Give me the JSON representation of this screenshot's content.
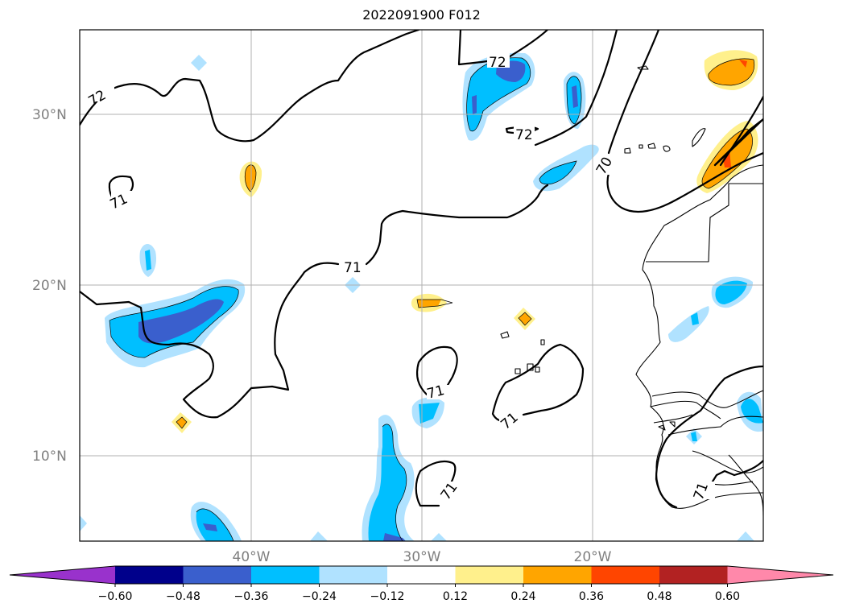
{
  "title": "2022091900 F012",
  "lat_labels": [
    "30°N",
    "20°N",
    "10°N"
  ],
  "lon_labels": [
    "40°W",
    "30°W",
    "20°W"
  ],
  "contour_labels": [
    "72",
    "72",
    "72",
    "71",
    "71",
    "71",
    "71",
    "71",
    "71",
    "70",
    "71"
  ],
  "colorbar": {
    "tick_labels": [
      "−0.60",
      "−0.48",
      "−0.36",
      "−0.24",
      "−0.12",
      "0.12",
      "0.24",
      "0.36",
      "0.48",
      "0.60"
    ],
    "colors": [
      "#9932cc",
      "#00008b",
      "#3a5fcd",
      "#00bfff",
      "#b0e2ff",
      "#ffffff",
      "#fff08c",
      "#ffa500",
      "#ff4500",
      "#b22222",
      "#ff88aa"
    ]
  },
  "colors": {
    "neg_light": "#b0e2ff",
    "neg_mid": "#00bfff",
    "neg_dark": "#3a5fcd",
    "pos_light": "#fff08c",
    "pos_mid": "#ffa500",
    "pos_dark": "#ff4500"
  }
}
